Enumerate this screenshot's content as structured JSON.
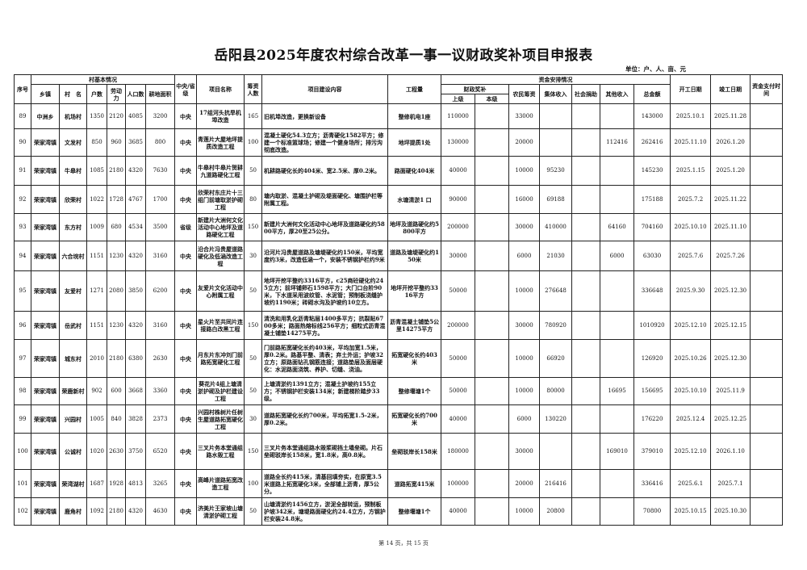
{
  "title": "岳阳县2025年度农村综合改革一事一议财政奖补项目申报表",
  "unit": "单位：户、人、亩、元",
  "headers": {
    "seq": "序号",
    "village_info": "村基本情况",
    "township": "乡镇",
    "village": "村　名",
    "households": "户数",
    "labor": "劳动力",
    "population": "人口数",
    "farmland": "耕地面积",
    "level": "中央/省级",
    "project_name": "项目名称",
    "funders": "筹资人数",
    "content": "项目建设内容",
    "quantity": "工程量",
    "funding": "资金安排情况",
    "subsidy": "财政奖补",
    "upper": "上级",
    "local": "本级",
    "farmer": "农民筹资",
    "collective": "集体收入",
    "donation": "社会捐助",
    "other": "其他收入",
    "total": "总金额",
    "start": "开工日期",
    "end": "竣工日期",
    "payment_time": "资金支付时间"
  },
  "rows": [
    {
      "seq": "89",
      "township": "中洲乡",
      "village": "机场村",
      "households": "1350",
      "labor": "2120",
      "population": "4085",
      "farmland": "3200",
      "level": "中央",
      "project_name": "17组河头抗旱机埠改造",
      "funders": "165",
      "content": "旧机埠改造，更换新设备",
      "quantity": "整修机电1座",
      "upper": "110000",
      "local": "",
      "farmer": "33000",
      "collective": "",
      "donation": "",
      "other": "",
      "total": "143000",
      "start": "2025.10.1",
      "end": "2025.11.28",
      "payment": ""
    },
    {
      "seq": "90",
      "township": "荣家湾镇",
      "village": "文发村",
      "households": "850",
      "labor": "960",
      "population": "3685",
      "farmland": "800",
      "level": "中央",
      "project_name": "青莲片大屋地坪提质改造工程",
      "funders": "100",
      "content": "混凝土硬化54.3立方；沥青硬化1582平方；修建一个标准篮球场；修建一个健身场所；排污沟彻底改造。",
      "quantity": "地坪提质1处",
      "upper": "130000",
      "local": "",
      "farmer": "20000",
      "collective": "",
      "donation": "",
      "other": "112416",
      "total": "262416",
      "start": "2025.11.10",
      "end": "2026.1.20",
      "payment": ""
    },
    {
      "seq": "91",
      "township": "荣家湾镇",
      "village": "牛皋村",
      "households": "1085",
      "labor": "2180",
      "population": "4320",
      "farmland": "7630",
      "level": "中央",
      "project_name": "牛皋村牛皋片贺耕九道路硬化工程",
      "funders": "50",
      "content": "机耕路硬化长的404米、宽2.5米、厚0.2米。",
      "quantity": "路面硬化404米",
      "upper": "40000",
      "local": "",
      "farmer": "10000",
      "collective": "95230",
      "donation": "",
      "other": "",
      "total": "145230",
      "start": "2025.1.15",
      "end": "2025.1.20",
      "payment": ""
    },
    {
      "seq": "92",
      "township": "荣家湾镇",
      "village": "欣荣村",
      "households": "1022",
      "labor": "1728",
      "population": "4767",
      "farmland": "1700",
      "level": "中央",
      "project_name": "欣荣村东庄片十三组门前塘取淤护砌工程",
      "funders": "80",
      "content": "塘内取淤、混凝土护砌及堤面硬化、塘围护栏等附属工程。",
      "quantity": "水塘清淤1 口",
      "upper": "90000",
      "local": "",
      "farmer": "16000",
      "collective": "69188",
      "donation": "",
      "other": "",
      "total": "175188",
      "start": "2025.7.2",
      "end": "2025.11.22",
      "payment": ""
    },
    {
      "seq": "93",
      "township": "荣家湾镇",
      "village": "东方村",
      "households": "1009",
      "labor": "680",
      "population": "4534",
      "farmland": "3500",
      "level": "省级",
      "project_name": "新建片大洲何文化活动中心地坪及道路硬化工程",
      "funders": "150",
      "content": "新建片大洲何文化活动中心地坪及道路硬化约5800平方，厚20至25公分。",
      "quantity": "地坪及道路硬化约5800平方",
      "upper": "200000",
      "local": "",
      "farmer": "30000",
      "collective": "410000",
      "donation": "",
      "other": "64160",
      "total": "704160",
      "start": "2025.10.10",
      "end": "2025.11.10",
      "payment": ""
    },
    {
      "seq": "94",
      "township": "荣家湾镇",
      "village": "六合垸村",
      "households": "1151",
      "labor": "1230",
      "population": "4320",
      "farmland": "3160",
      "level": "中央",
      "project_name": "沿合片冯贵屋道路硬化及低涵改造工程",
      "funders": "30",
      "content": "沿河片冯贵屋道路及塘堤硬化约150米，平均宽度约3米，改造低涵一个，安装不锈钢护栏约9米",
      "quantity": "道路及塘堤硬化约150米",
      "upper": "30000",
      "local": "",
      "farmer": "6000",
      "collective": "21030",
      "donation": "",
      "other": "6000",
      "total": "63030",
      "start": "2025.7.6",
      "end": "2025.7.26",
      "payment": ""
    },
    {
      "seq": "95",
      "township": "荣家湾镇",
      "village": "友爱村",
      "households": "1271",
      "labor": "2080",
      "population": "3850",
      "farmland": "6200",
      "level": "中央",
      "project_name": "友爱片文化活动中心附属工程",
      "funders": "50",
      "content": "地坪开挖平整约3316平方，c25商砼硬化约245立方；前坪铺卵石1598平方；大门口台阶90米，下水道采用波纹管、水泥管；预制板浇缝护坡约1190米；砖砌水沟及护坡约10立方。",
      "quantity": "地坪开挖平整约3316平方",
      "upper": "50000",
      "local": "",
      "farmer": "10000",
      "collective": "276648",
      "donation": "",
      "other": "",
      "total": "336648",
      "start": "2025.9.30",
      "end": "2025.12.30",
      "payment": ""
    },
    {
      "seq": "96",
      "township": "荣家湾镇",
      "village": "岳武村",
      "households": "1151",
      "labor": "1230",
      "population": "4320",
      "farmland": "3160",
      "level": "中央",
      "project_name": "星火片至共同片连接路白改黑工程",
      "funders": "150",
      "content": "清洗和用乳化沥青粘层1400多平方；抗裂贴6700多米；路面热熔标线256平方；细粒式沥青混凝土铺垫14275平方。",
      "quantity": "沥青混凝土铺垫5公里14275平方",
      "upper": "200000",
      "local": "",
      "farmer": "30000",
      "collective": "780920",
      "donation": "",
      "other": "",
      "total": "1010920",
      "start": "2025.12.10",
      "end": "2025.12.15",
      "payment": ""
    },
    {
      "seq": "97",
      "township": "荣家湾镇",
      "village": "城东村",
      "households": "2010",
      "labor": "2180",
      "population": "6380",
      "farmland": "2630",
      "level": "中央",
      "project_name": "月东片东冲刘门前路拓宽硬化工程",
      "funders": "50",
      "content": "门前路拓宽硬化长约403米，平均加宽1.5米，厚0.2米。路基平整、清表；弃土外运；护坡32立方；原路面钻孔钢筋连接；道路垫层及面层硬化：水泥路面浇筑、养护、切缝、浇油。",
      "quantity": "拓宽硬化长约403米",
      "upper": "50000",
      "local": "",
      "farmer": "10000",
      "collective": "66920",
      "donation": "",
      "other": "",
      "total": "126920",
      "start": "2025.10.26",
      "end": "2025.12.30",
      "payment": ""
    },
    {
      "seq": "98",
      "township": "荣家湾镇",
      "village": "荣鹿新村",
      "households": "902",
      "labor": "600",
      "population": "3668",
      "farmland": "3360",
      "level": "中央",
      "project_name": "葵花片4组上塘清淤护砌及护栏建设工程",
      "funders": "50",
      "content": "上塘清淤约1391立方；混凝土护坡约155立方；不锈钢护栏安装134米；新建梯阶踏步33级。",
      "quantity": "整修堰塘1个",
      "upper": "50000",
      "local": "",
      "farmer": "10000",
      "collective": "80000",
      "donation": "",
      "other": "16695",
      "total": "156695",
      "start": "2025.10.10",
      "end": "2025.11.9",
      "payment": ""
    },
    {
      "seq": "99",
      "township": "荣家湾镇",
      "village": "兴园村",
      "households": "1005",
      "labor": "840",
      "population": "3828",
      "farmland": "2373",
      "level": "中央",
      "project_name": "兴园村株树片任树生屋道路拓宽硬化工程",
      "funders": "30",
      "content": "道路拓宽硬化长约700米，平均拓宽1.5-2米，厚0.2米。",
      "quantity": "拓宽硬化长约700米",
      "upper": "40000",
      "local": "",
      "farmer": "6000",
      "collective": "130220",
      "donation": "",
      "other": "",
      "total": "176220",
      "start": "2025.12.4",
      "end": "2025.12.25",
      "payment": ""
    },
    {
      "seq": "100",
      "township": "荣家湾镇",
      "village": "公诚村",
      "households": "1020",
      "labor": "2630",
      "population": "3750",
      "farmland": "6520",
      "level": "中央",
      "project_name": "三叉片务本堂通组路水毁工程",
      "funders": "150",
      "content": "三叉片务本堂通组路水毁浆砌挡土墙垒砌。片石垒砌驳岸长158米，宽1.8米，高0.8米。",
      "quantity": "垒砌驳岸长158米",
      "upper": "180000",
      "local": "",
      "farmer": "30000",
      "collective": "",
      "donation": "",
      "other": "169010",
      "total": "379010",
      "start": "2025.12.10",
      "end": "2026.1.10",
      "payment": ""
    },
    {
      "seq": "101",
      "township": "荣家湾镇",
      "village": "荣湾湖村",
      "households": "1687",
      "labor": "1928",
      "population": "4813",
      "farmland": "3265",
      "level": "中央",
      "project_name": "高峰片道路拓宽改造工程",
      "funders": "100",
      "content": "道路全长约415米，清基回填夯实，在原宽3.5米道路上拓宽硬化3米，全部铺上沥青，厚5公分。",
      "quantity": "道路拓宽415米",
      "upper": "100000",
      "local": "",
      "farmer": "20000",
      "collective": "216416",
      "donation": "",
      "other": "",
      "total": "336416",
      "start": "2025.6.1",
      "end": "2025.7.1",
      "payment": ""
    },
    {
      "seq": "102",
      "township": "荣家湾镇",
      "village": "鹿角村",
      "households": "1092",
      "labor": "2180",
      "population": "4320",
      "farmland": "4630",
      "level": "中央",
      "project_name": "济美片王家坡山塘清淤护砌工程",
      "funders": "50",
      "content": "山塘清淤约1456立方，淤泥全部转运，预制板护坡342米，塘堤路面硬化约24.4立方，方钢护栏安装24.8米。",
      "quantity": "整修堰塘1个",
      "upper": "40000",
      "local": "",
      "farmer": "10000",
      "collective": "20800",
      "donation": "",
      "other": "",
      "total": "70800",
      "start": "2025.10.15",
      "end": "2025.10.30",
      "payment": ""
    }
  ],
  "footer": "第 14 页，共 15 页"
}
